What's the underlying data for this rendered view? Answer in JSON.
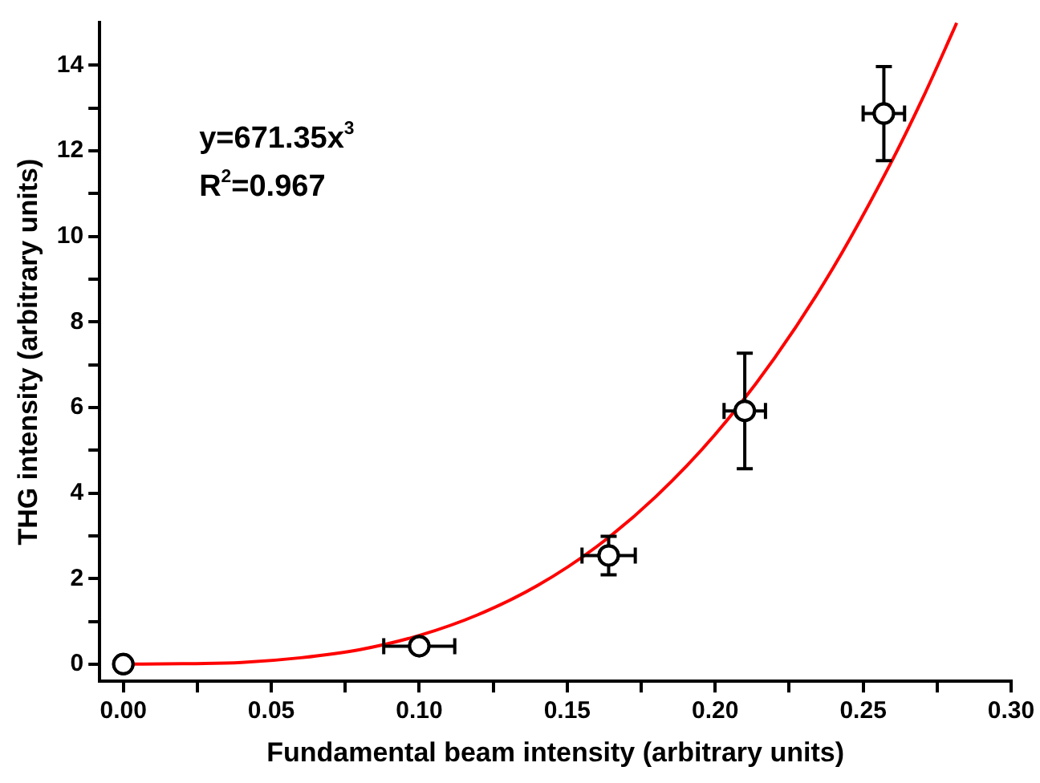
{
  "chart_data": {
    "type": "scatter",
    "xlabel": "Fundamental beam intensity (arbitrary units)",
    "ylabel": "THG intensity (arbitrary units)",
    "annotations": [
      "y=671.35x$^{3}$",
      "R$^{2}$=0.967"
    ],
    "xlim": [
      -0.008,
      0.3
    ],
    "ylim": [
      -0.4,
      15
    ],
    "xticks": [
      {
        "value": 0,
        "label": "0.00"
      },
      {
        "value": 0.025,
        "label": null
      },
      {
        "value": 0.05,
        "label": "0.05"
      },
      {
        "value": 0.075,
        "label": null
      },
      {
        "value": 0.1,
        "label": "0.10"
      },
      {
        "value": 0.125,
        "label": null
      },
      {
        "value": 0.15,
        "label": "0.15"
      },
      {
        "value": 0.175,
        "label": null
      },
      {
        "value": 0.2,
        "label": "0.20"
      },
      {
        "value": 0.225,
        "label": null
      },
      {
        "value": 0.25,
        "label": "0.25"
      },
      {
        "value": 0.275,
        "label": null
      },
      {
        "value": 0.3,
        "label": "0.30"
      }
    ],
    "yticks": [
      0,
      {
        "value": 1,
        "label": null
      },
      2,
      {
        "value": 3,
        "label": null
      },
      4,
      {
        "value": 5,
        "label": null
      },
      6,
      {
        "value": 7,
        "label": null
      },
      8,
      {
        "value": 9,
        "label": null
      },
      10,
      {
        "value": 11,
        "label": null
      },
      12,
      {
        "value": 13,
        "label": null
      },
      14
    ],
    "grid": false,
    "legend": false,
    "series": [
      {
        "color": "#000000",
        "marker": "circle",
        "x": [
          0,
          0.1,
          0.164,
          0.21,
          0.257
        ],
        "values": [
          0,
          0.42,
          2.54,
          5.92,
          12.87
        ],
        "errors": [
          null,
          0.1,
          0.45,
          1.35,
          1.1
        ],
        "xerrors": [
          null,
          0.012,
          0.009,
          0.007,
          0.007
        ]
      },
      {
        "type": "line",
        "color": "#ff0000",
        "marker": "none",
        "line_style": "solid",
        "x": [
          0,
          0.02,
          0.04,
          0.06,
          0.08,
          0.1,
          0.12,
          0.14,
          0.16,
          0.18,
          0.2,
          0.22,
          0.24,
          0.26,
          0.27,
          0.28,
          0.2816
        ],
        "values": [
          0,
          0.01,
          0.04,
          0.15,
          0.34,
          0.67,
          1.16,
          1.84,
          2.75,
          3.92,
          5.37,
          7.15,
          9.28,
          11.8,
          13.21,
          14.74,
          14.99
        ]
      }
    ]
  }
}
